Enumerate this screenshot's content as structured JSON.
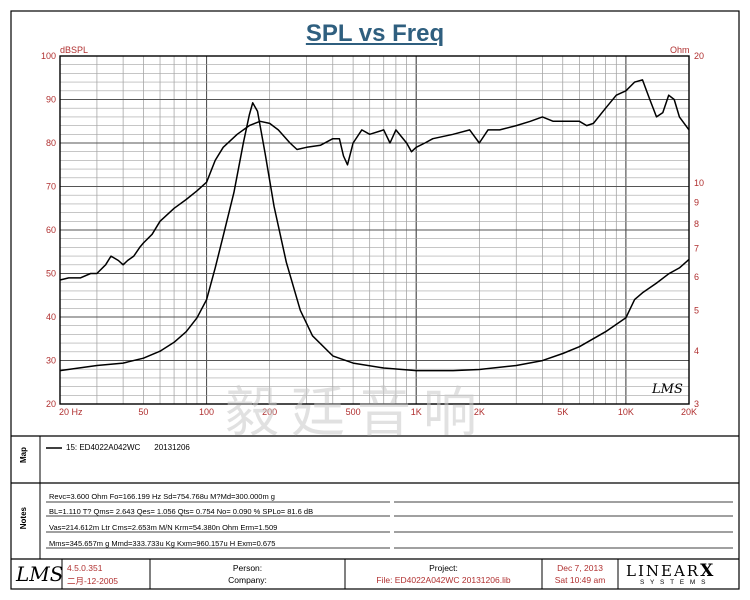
{
  "chart_data": {
    "type": "line",
    "title": "SPL vs Freq",
    "ylabel_left": "dBSPL",
    "ylabel_right": "Ohm",
    "x_scale": "log",
    "xlim": [
      20,
      20000
    ],
    "ylim_left": [
      20,
      100
    ],
    "ylim_right": [
      3,
      20
    ],
    "y_right_scale": "log",
    "x_ticks": [
      {
        "value": 20,
        "label": "20  Hz"
      },
      {
        "value": 50,
        "label": "50"
      },
      {
        "value": 100,
        "label": "100"
      },
      {
        "value": 200,
        "label": "200"
      },
      {
        "value": 500,
        "label": "500"
      },
      {
        "value": 1000,
        "label": "1K"
      },
      {
        "value": 2000,
        "label": "2K"
      },
      {
        "value": 5000,
        "label": "5K"
      },
      {
        "value": 10000,
        "label": "10K"
      },
      {
        "value": 20000,
        "label": "20K"
      }
    ],
    "y_left_ticks": [
      20,
      30,
      40,
      50,
      60,
      70,
      80,
      90,
      100
    ],
    "y_right_ticks": [
      {
        "value": 3,
        "label": "3"
      },
      {
        "value": 4,
        "label": "4"
      },
      {
        "value": 5,
        "label": "5"
      },
      {
        "value": 6,
        "label": "6"
      },
      {
        "value": 7,
        "label": "7"
      },
      {
        "value": 8,
        "label": "8"
      },
      {
        "value": 9,
        "label": "9"
      },
      {
        "value": 10,
        "label": "10"
      },
      {
        "value": 20,
        "label": "20"
      }
    ],
    "grid": true,
    "series": [
      {
        "axis": "left",
        "points": [
          [
            20,
            48.5
          ],
          [
            22,
            49
          ],
          [
            25,
            49
          ],
          [
            28,
            50
          ],
          [
            30,
            50
          ],
          [
            33,
            52
          ],
          [
            35,
            54
          ],
          [
            38,
            53
          ],
          [
            40,
            52
          ],
          [
            42,
            53
          ],
          [
            45,
            54
          ],
          [
            48,
            56
          ],
          [
            50,
            57
          ],
          [
            55,
            59
          ],
          [
            60,
            62
          ],
          [
            70,
            65
          ],
          [
            80,
            67
          ],
          [
            90,
            69
          ],
          [
            100,
            71
          ],
          [
            110,
            76
          ],
          [
            120,
            79
          ],
          [
            140,
            82
          ],
          [
            160,
            84
          ],
          [
            180,
            85
          ],
          [
            200,
            84.5
          ],
          [
            220,
            83
          ],
          [
            250,
            80
          ],
          [
            270,
            78.5
          ],
          [
            300,
            79
          ],
          [
            350,
            79.5
          ],
          [
            400,
            81
          ],
          [
            430,
            81
          ],
          [
            450,
            77
          ],
          [
            470,
            75
          ],
          [
            500,
            80
          ],
          [
            550,
            83
          ],
          [
            600,
            82
          ],
          [
            700,
            83
          ],
          [
            750,
            80
          ],
          [
            800,
            83
          ],
          [
            900,
            80
          ],
          [
            950,
            78
          ],
          [
            1000,
            79
          ],
          [
            1100,
            80
          ],
          [
            1200,
            81
          ],
          [
            1500,
            82
          ],
          [
            1800,
            83
          ],
          [
            2000,
            80
          ],
          [
            2200,
            83
          ],
          [
            2500,
            83
          ],
          [
            3000,
            84
          ],
          [
            3500,
            85
          ],
          [
            4000,
            86
          ],
          [
            4500,
            85
          ],
          [
            5000,
            85
          ],
          [
            6000,
            85
          ],
          [
            6500,
            84
          ],
          [
            7000,
            84.5
          ],
          [
            8000,
            88
          ],
          [
            9000,
            91
          ],
          [
            10000,
            92
          ],
          [
            11000,
            94
          ],
          [
            12000,
            94.5
          ],
          [
            13000,
            90
          ],
          [
            14000,
            86
          ],
          [
            15000,
            87
          ],
          [
            16000,
            91
          ],
          [
            17000,
            90
          ],
          [
            18000,
            86
          ],
          [
            20000,
            83
          ]
        ]
      },
      {
        "axis": "right",
        "points": [
          [
            20,
            3.6
          ],
          [
            30,
            3.7
          ],
          [
            40,
            3.75
          ],
          [
            50,
            3.85
          ],
          [
            60,
            4
          ],
          [
            70,
            4.2
          ],
          [
            80,
            4.45
          ],
          [
            90,
            4.8
          ],
          [
            100,
            5.3
          ],
          [
            110,
            6.3
          ],
          [
            120,
            7.5
          ],
          [
            135,
            9.5
          ],
          [
            150,
            12.5
          ],
          [
            160,
            14.5
          ],
          [
            166,
            15.5
          ],
          [
            175,
            14.8
          ],
          [
            190,
            11.8
          ],
          [
            210,
            8.8
          ],
          [
            240,
            6.5
          ],
          [
            280,
            5
          ],
          [
            320,
            4.35
          ],
          [
            400,
            3.9
          ],
          [
            500,
            3.75
          ],
          [
            700,
            3.65
          ],
          [
            1000,
            3.6
          ],
          [
            1500,
            3.6
          ],
          [
            2000,
            3.62
          ],
          [
            3000,
            3.7
          ],
          [
            4000,
            3.8
          ],
          [
            5000,
            3.95
          ],
          [
            6000,
            4.1
          ],
          [
            8000,
            4.45
          ],
          [
            10000,
            4.8
          ],
          [
            11000,
            5.3
          ],
          [
            12000,
            5.5
          ],
          [
            14000,
            5.8
          ],
          [
            16000,
            6.1
          ],
          [
            18000,
            6.3
          ],
          [
            20000,
            6.6
          ]
        ]
      }
    ]
  },
  "watermark": "毅廷音响",
  "lms_mark": "LMS",
  "map": {
    "label": "Map",
    "legend_name": "15: ED4022A042WC",
    "legend_date": "20131206"
  },
  "notes": {
    "label": "Notes",
    "lines": [
      "Revc=3.600 Ohm  Fo=166.199 Hz  Sd=754.768u M?Md=300.000m g",
      "BL=1.110 T?  Qms= 2.643  Qes= 1.056  Qts= 0.754  No= 0.090 %  SPLo= 81.6 dB",
      "Vas=214.612m Ltr  Cms=2.653m M/N  Krm=54.380n Ohm  Erm=1.509",
      "Mms=345.657m g  Mmd=333.733u Kg  Kxm=960.157u H  Exm=0.675"
    ]
  },
  "footer": {
    "version": "4.5.0.351",
    "version_date": "二月-12-2005",
    "person_label": "Person:",
    "company_label": "Company:",
    "project_label": "Project:",
    "file_value": "File: ED4022A042WC 20131206.lib",
    "date_line": "Dec  7, 2013",
    "time_line": "Sat 10:49 am",
    "brand_top": "LINEAR",
    "brand_x": "X",
    "brand_bottom": "S Y S T E M S"
  }
}
